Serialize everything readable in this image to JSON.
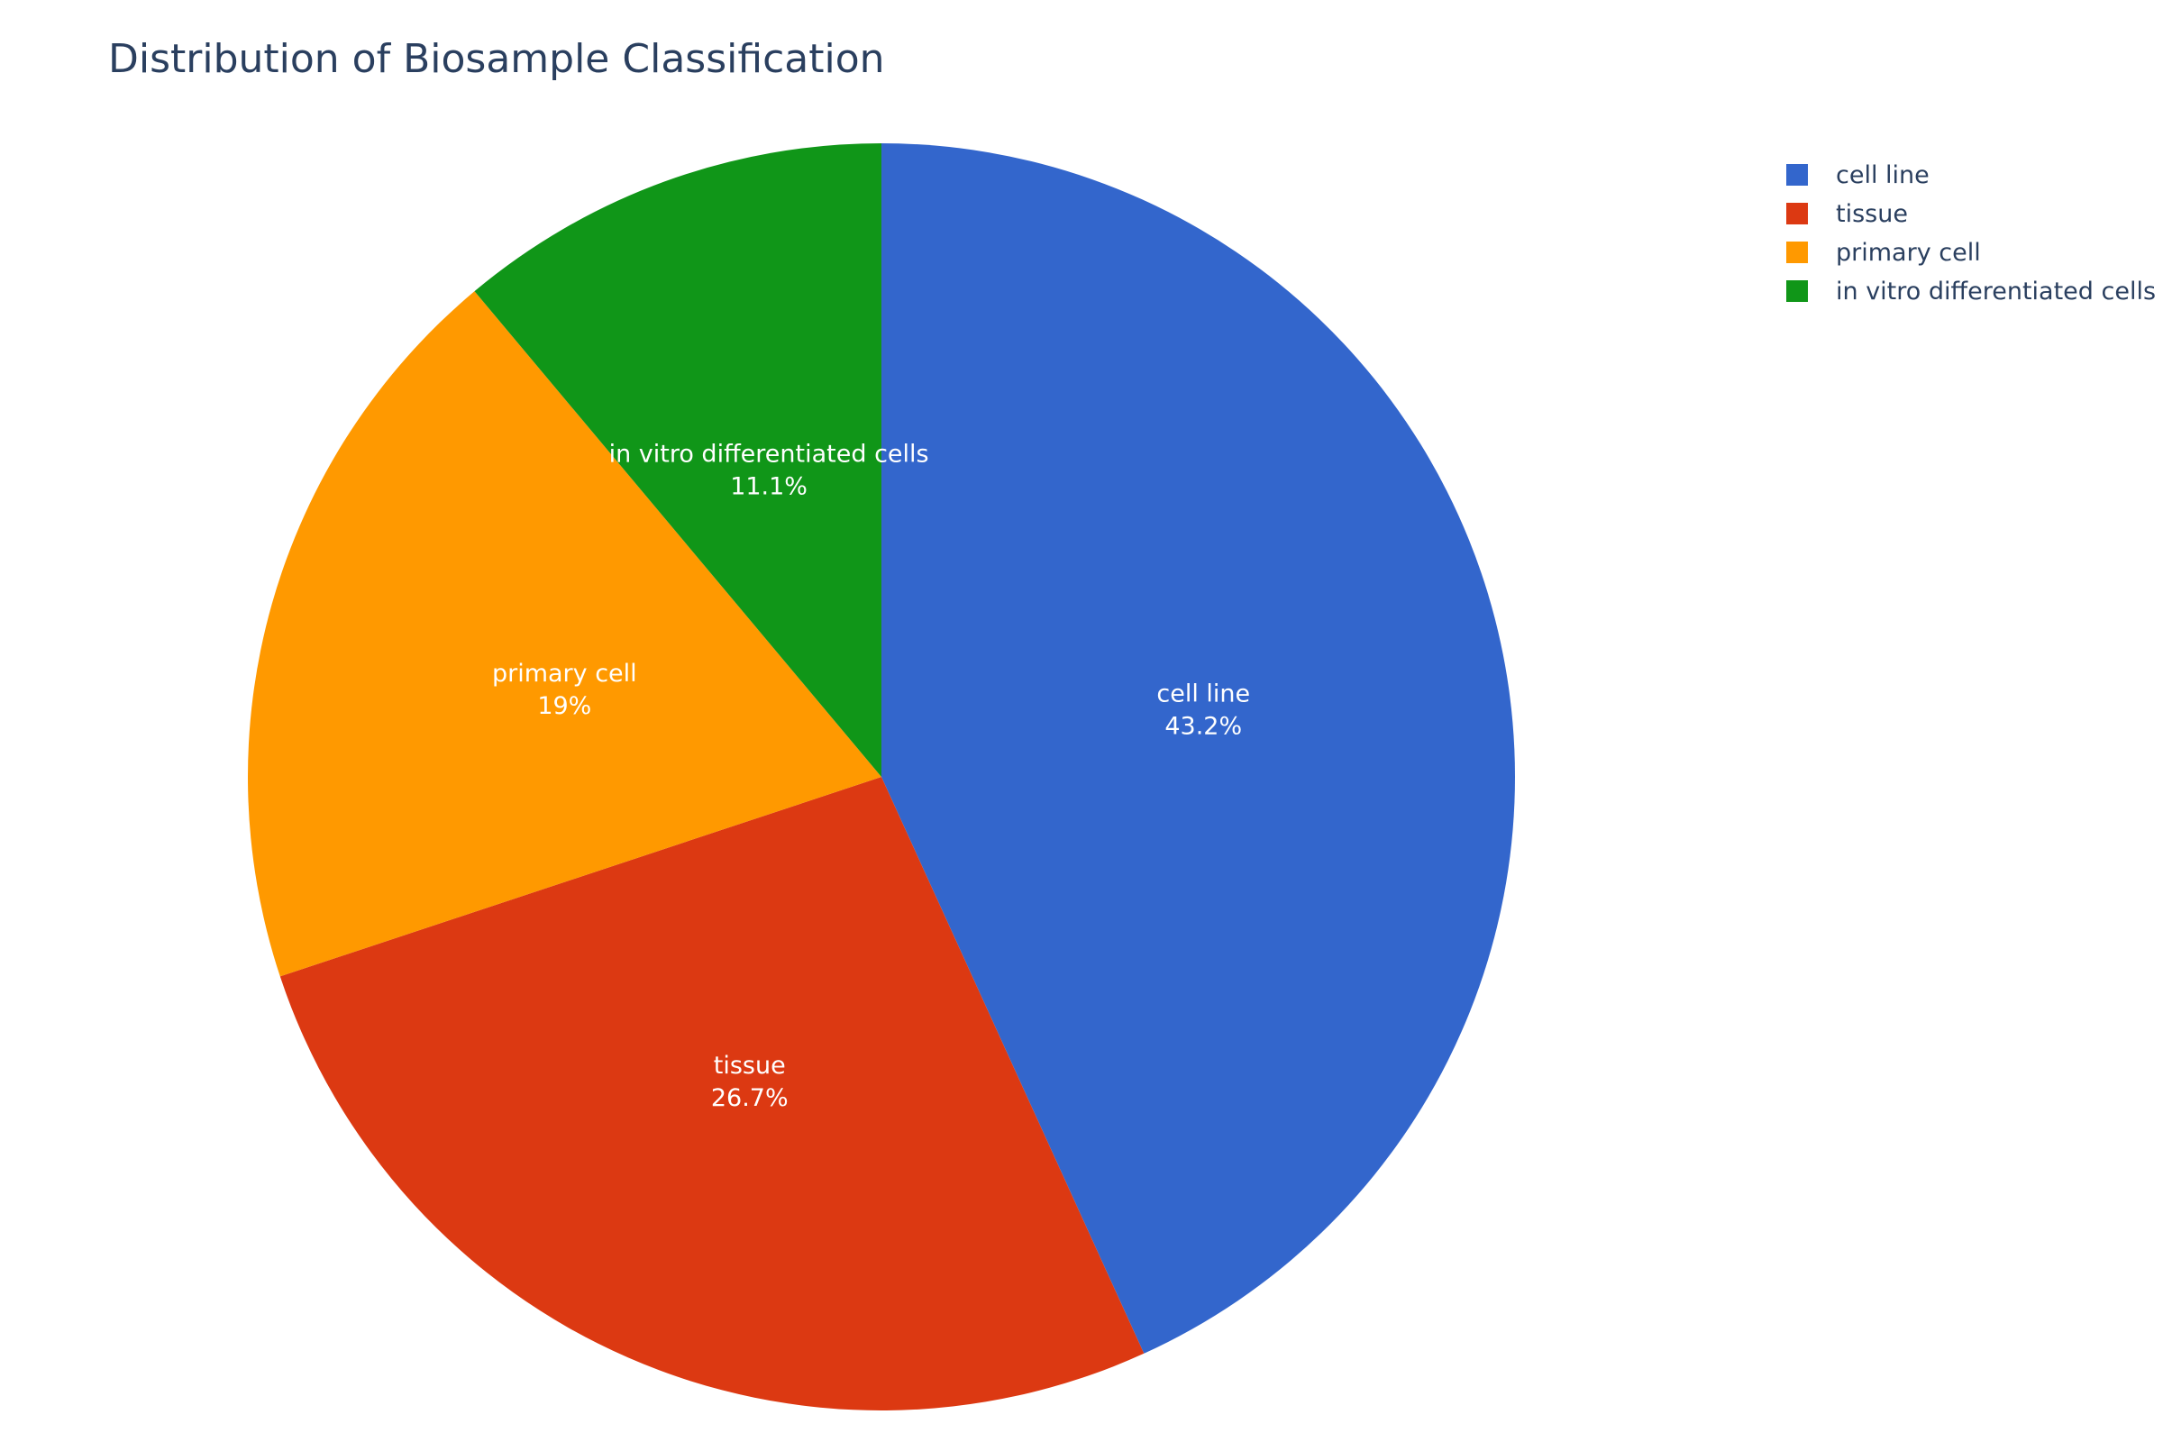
{
  "chart_data": {
    "type": "pie",
    "title": "Distribution of Biosample Classification",
    "legend_position": "top-right",
    "slices": [
      {
        "label": "cell line",
        "percent": 43.2,
        "percent_text": "43.2%",
        "color": "#3366cc"
      },
      {
        "label": "tissue",
        "percent": 26.7,
        "percent_text": "26.7%",
        "color": "#dc3912"
      },
      {
        "label": "primary cell",
        "percent": 19,
        "percent_text": "19%",
        "color": "#ff9900"
      },
      {
        "label": "in vitro differentiated cells",
        "percent": 11.1,
        "percent_text": "11.1%",
        "color": "#109618"
      }
    ],
    "legend_order": [
      "cell line",
      "tissue",
      "primary cell",
      "in vitro differentiated cells"
    ]
  }
}
